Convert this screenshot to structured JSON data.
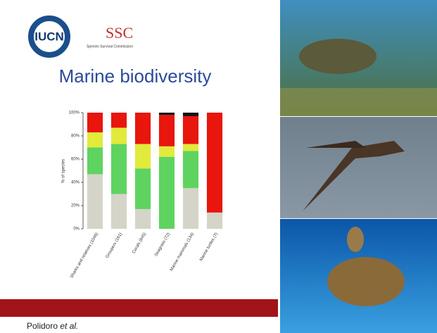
{
  "logos": {
    "iucn": "IUCN",
    "ssc": "SSC",
    "ssc_subtitle": "Species Survival Commission"
  },
  "chart_data": {
    "type": "bar",
    "stacked": true,
    "title": "Marine biodiversity",
    "ylabel": "% of species",
    "categories": [
      "Sharks and relatives (1046)",
      "Groupers (161)",
      "Corals (845)",
      "Seagrass (72)",
      "Marine mammals (134)",
      "Marine turtles (7)"
    ],
    "series": [
      {
        "color": "#d4d4c8",
        "values": [
          47,
          30,
          17,
          0,
          35,
          14
        ]
      },
      {
        "color": "#5fd35f",
        "values": [
          23,
          43,
          35,
          62,
          32,
          0
        ]
      },
      {
        "color": "#e2ea3c",
        "values": [
          13,
          14,
          21,
          9,
          6,
          0
        ]
      },
      {
        "color": "#e8160c",
        "values": [
          17,
          13,
          27,
          27,
          24,
          86
        ]
      },
      {
        "color": "#111111",
        "values": [
          0,
          0,
          0,
          2,
          3,
          0
        ]
      }
    ],
    "ylim": [
      0,
      100
    ],
    "yticks": [
      {
        "value": 0,
        "label": "0%"
      },
      {
        "value": 20,
        "label": "20%"
      },
      {
        "value": 40,
        "label": "40%"
      },
      {
        "value": 60,
        "label": "60%"
      },
      {
        "value": 80,
        "label": "80%"
      },
      {
        "value": 100,
        "label": "100%"
      }
    ]
  },
  "citation": {
    "name": "Polidoro",
    "suffix": "et al."
  }
}
